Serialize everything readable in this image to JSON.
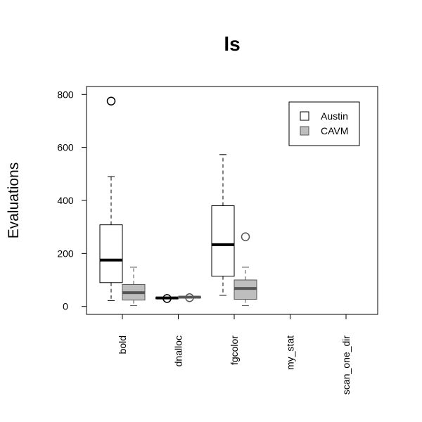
{
  "chart_data": {
    "type": "boxplot",
    "title": "ls",
    "ylabel": "Evaluations",
    "xlabel": "",
    "ylim": [
      -30,
      830
    ],
    "yticks": [
      0,
      200,
      400,
      600,
      800
    ],
    "categories": [
      "bold",
      "dnalloc",
      "fgcolor",
      "my_stat",
      "scan_one_dir"
    ],
    "legend": {
      "position": "top-right"
    },
    "series": [
      {
        "name": "Austin",
        "fill": "#ffffff",
        "stroke": "#000000",
        "boxes": [
          {
            "category": "bold",
            "whisker_low": 22,
            "q1": 90,
            "median": 175,
            "q3": 308,
            "whisker_high": 490,
            "outliers": [
              775
            ]
          },
          {
            "category": "dnalloc",
            "whisker_low": 31,
            "q1": 31,
            "median": 32,
            "q3": 33,
            "whisker_high": 33,
            "outliers": [
              30
            ]
          },
          {
            "category": "fgcolor",
            "whisker_low": 42,
            "q1": 114,
            "median": 233,
            "q3": 380,
            "whisker_high": 573,
            "outliers": []
          }
        ]
      },
      {
        "name": "CAVM",
        "fill": "#bebebe",
        "stroke": "#555555",
        "boxes": [
          {
            "category": "bold",
            "whisker_low": 3,
            "q1": 24,
            "median": 52,
            "q3": 83,
            "whisker_high": 148,
            "outliers": []
          },
          {
            "category": "dnalloc",
            "whisker_low": 33,
            "q1": 34,
            "median": 35,
            "q3": 36,
            "whisker_high": 36,
            "outliers": [
              33
            ]
          },
          {
            "category": "fgcolor",
            "whisker_low": 3,
            "q1": 27,
            "median": 68,
            "q3": 100,
            "whisker_high": 148,
            "outliers": [
              263
            ]
          }
        ]
      }
    ]
  }
}
